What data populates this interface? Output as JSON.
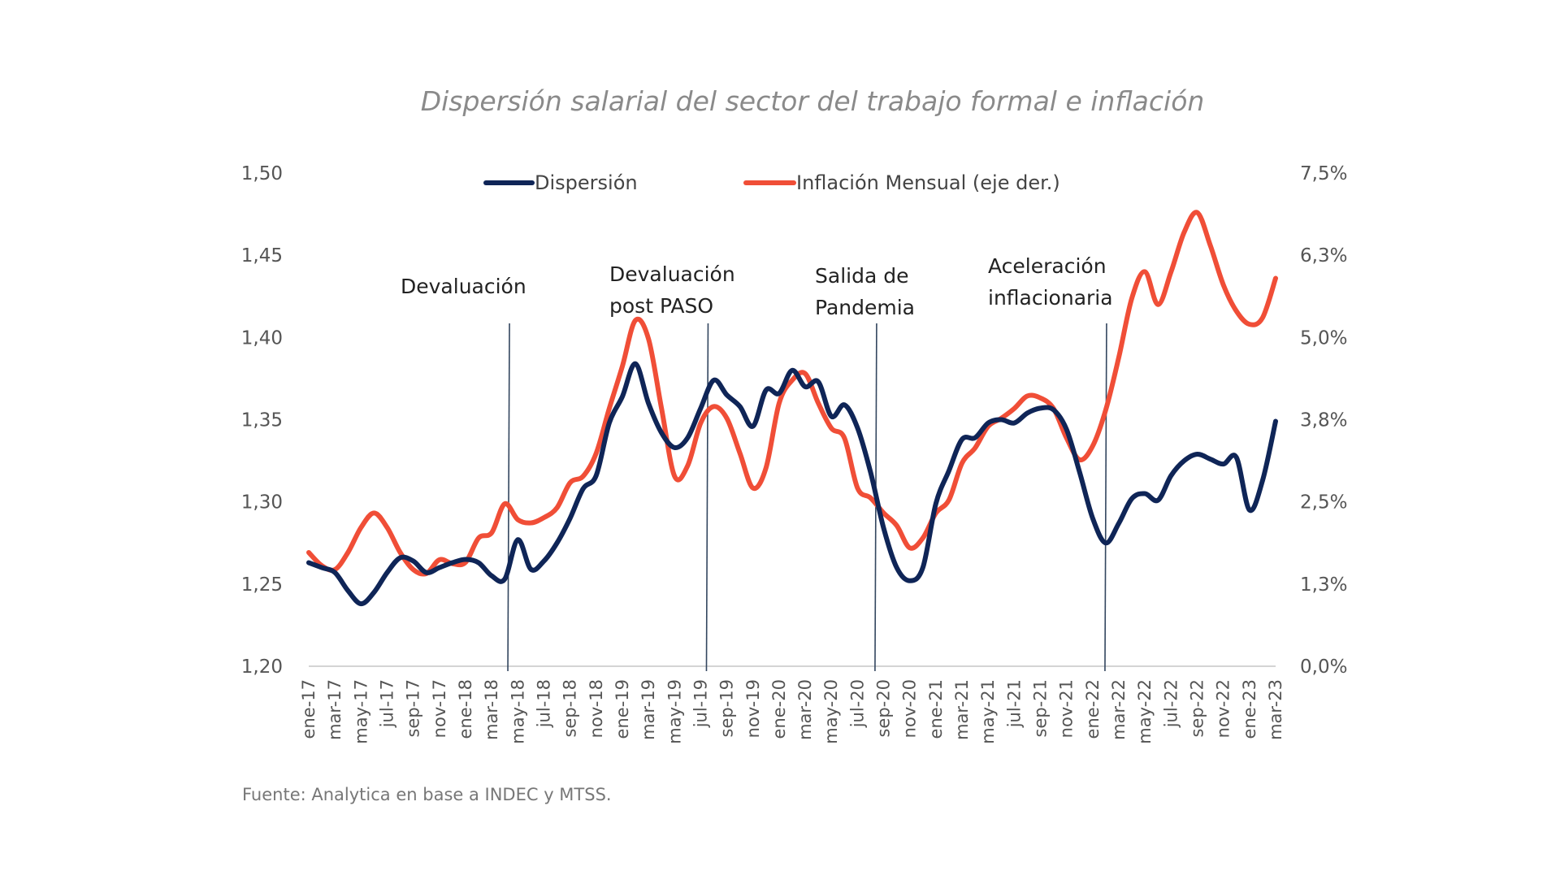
{
  "chart_data": {
    "type": "line",
    "title": "Dispersión salarial del sector del trabajo formal e inflación",
    "source": "Fuente: Analytica en base a INDEC y MTSS.",
    "x": [
      "ene-17",
      "feb-17",
      "mar-17",
      "abr-17",
      "may-17",
      "jun-17",
      "jul-17",
      "ago-17",
      "sep-17",
      "oct-17",
      "nov-17",
      "dic-17",
      "ene-18",
      "feb-18",
      "mar-18",
      "abr-18",
      "may-18",
      "jun-18",
      "jul-18",
      "ago-18",
      "sep-18",
      "oct-18",
      "nov-18",
      "dic-18",
      "ene-19",
      "feb-19",
      "mar-19",
      "abr-19",
      "may-19",
      "jun-19",
      "jul-19",
      "ago-19",
      "sep-19",
      "oct-19",
      "nov-19",
      "dic-19",
      "ene-20",
      "feb-20",
      "mar-20",
      "abr-20",
      "may-20",
      "jun-20",
      "jul-20",
      "ago-20",
      "sep-20",
      "oct-20",
      "nov-20",
      "dic-20",
      "ene-21",
      "feb-21",
      "mar-21",
      "abr-21",
      "may-21",
      "jun-21",
      "jul-21",
      "ago-21",
      "sep-21",
      "oct-21",
      "nov-21",
      "dic-21",
      "ene-22",
      "feb-22",
      "mar-22",
      "abr-22",
      "may-22",
      "jun-22",
      "jul-22",
      "ago-22",
      "sep-22",
      "oct-22",
      "nov-22",
      "dic-22",
      "ene-23",
      "feb-23",
      "mar-23"
    ],
    "x_tick_labels": [
      "ene-17",
      "mar-17",
      "may-17",
      "jul-17",
      "sep-17",
      "nov-17",
      "ene-18",
      "mar-18",
      "may-18",
      "jul-18",
      "sep-18",
      "nov-18",
      "ene-19",
      "mar-19",
      "may-19",
      "jul-19",
      "sep-19",
      "nov-19",
      "ene-20",
      "mar-20",
      "may-20",
      "jul-20",
      "sep-20",
      "nov-20",
      "ene-21",
      "mar-21",
      "may-21",
      "jul-21",
      "sep-21",
      "nov-21",
      "ene-22",
      "mar-22",
      "may-22",
      "jul-22",
      "sep-22",
      "nov-22",
      "ene-23",
      "mar-23"
    ],
    "y_left": {
      "label": "",
      "range": [
        1.2,
        1.5
      ],
      "ticks": [
        "1,20",
        "1,25",
        "1,30",
        "1,35",
        "1,40",
        "1,45",
        "1,50"
      ],
      "tick_values": [
        1.2,
        1.25,
        1.3,
        1.35,
        1.4,
        1.45,
        1.5
      ]
    },
    "y_right": {
      "label": "",
      "range": [
        0.0,
        7.5
      ],
      "ticks": [
        "0,0%",
        "1,3%",
        "2,5%",
        "3,8%",
        "5,0%",
        "6,3%",
        "7,5%"
      ],
      "tick_values": [
        0,
        1.25,
        2.5,
        3.75,
        5.0,
        6.25,
        7.5
      ]
    },
    "grid": false,
    "legend_position": "top",
    "series": [
      {
        "name": "Dispersión",
        "axis": "left",
        "color": "#0f2557",
        "values": [
          1.263,
          1.26,
          1.257,
          1.246,
          1.238,
          1.245,
          1.257,
          1.266,
          1.264,
          1.257,
          1.26,
          1.263,
          1.265,
          1.263,
          1.255,
          1.253,
          1.277,
          1.259,
          1.264,
          1.275,
          1.29,
          1.308,
          1.316,
          1.348,
          1.364,
          1.384,
          1.36,
          1.342,
          1.333,
          1.339,
          1.357,
          1.374,
          1.365,
          1.358,
          1.346,
          1.368,
          1.366,
          1.38,
          1.37,
          1.373,
          1.352,
          1.359,
          1.345,
          1.318,
          1.284,
          1.26,
          1.252,
          1.26,
          1.299,
          1.319,
          1.338,
          1.339,
          1.348,
          1.35,
          1.348,
          1.354,
          1.357,
          1.356,
          1.344,
          1.318,
          1.29,
          1.275,
          1.287,
          1.302,
          1.305,
          1.301,
          1.316,
          1.325,
          1.329,
          1.326,
          1.323,
          1.327,
          1.295,
          1.313,
          1.349
        ]
      },
      {
        "name": "Inflación Mensual (eje der.)",
        "axis": "right",
        "color": "#f04e37",
        "values": [
          1.73,
          1.53,
          1.47,
          1.73,
          2.11,
          2.33,
          2.11,
          1.73,
          1.47,
          1.41,
          1.62,
          1.56,
          1.58,
          1.95,
          2.03,
          2.47,
          2.23,
          2.18,
          2.26,
          2.41,
          2.79,
          2.89,
          3.24,
          3.92,
          4.56,
          5.26,
          4.98,
          3.92,
          2.89,
          3.05,
          3.7,
          3.95,
          3.77,
          3.24,
          2.71,
          3.02,
          4.0,
          4.35,
          4.45,
          4.0,
          3.62,
          3.47,
          2.71,
          2.56,
          2.33,
          2.14,
          1.8,
          1.95,
          2.33,
          2.53,
          3.09,
          3.32,
          3.65,
          3.77,
          3.92,
          4.11,
          4.08,
          3.92,
          3.47,
          3.14,
          3.35,
          3.9,
          4.7,
          5.6,
          6.0,
          5.5,
          6.0,
          6.6,
          6.9,
          6.4,
          5.8,
          5.4,
          5.2,
          5.3,
          5.9
        ]
      }
    ],
    "annotations": [
      {
        "lines": [
          "Devaluación"
        ],
        "x_index": 15.3
      },
      {
        "lines": [
          "Devaluación",
          "post PASO"
        ],
        "x_index": 30.5
      },
      {
        "lines": [
          "Salida de",
          "Pandemia"
        ],
        "x_index": 43.4
      },
      {
        "lines": [
          "Aceleración",
          "inflacionaria"
        ],
        "x_index": 61.0
      }
    ]
  }
}
